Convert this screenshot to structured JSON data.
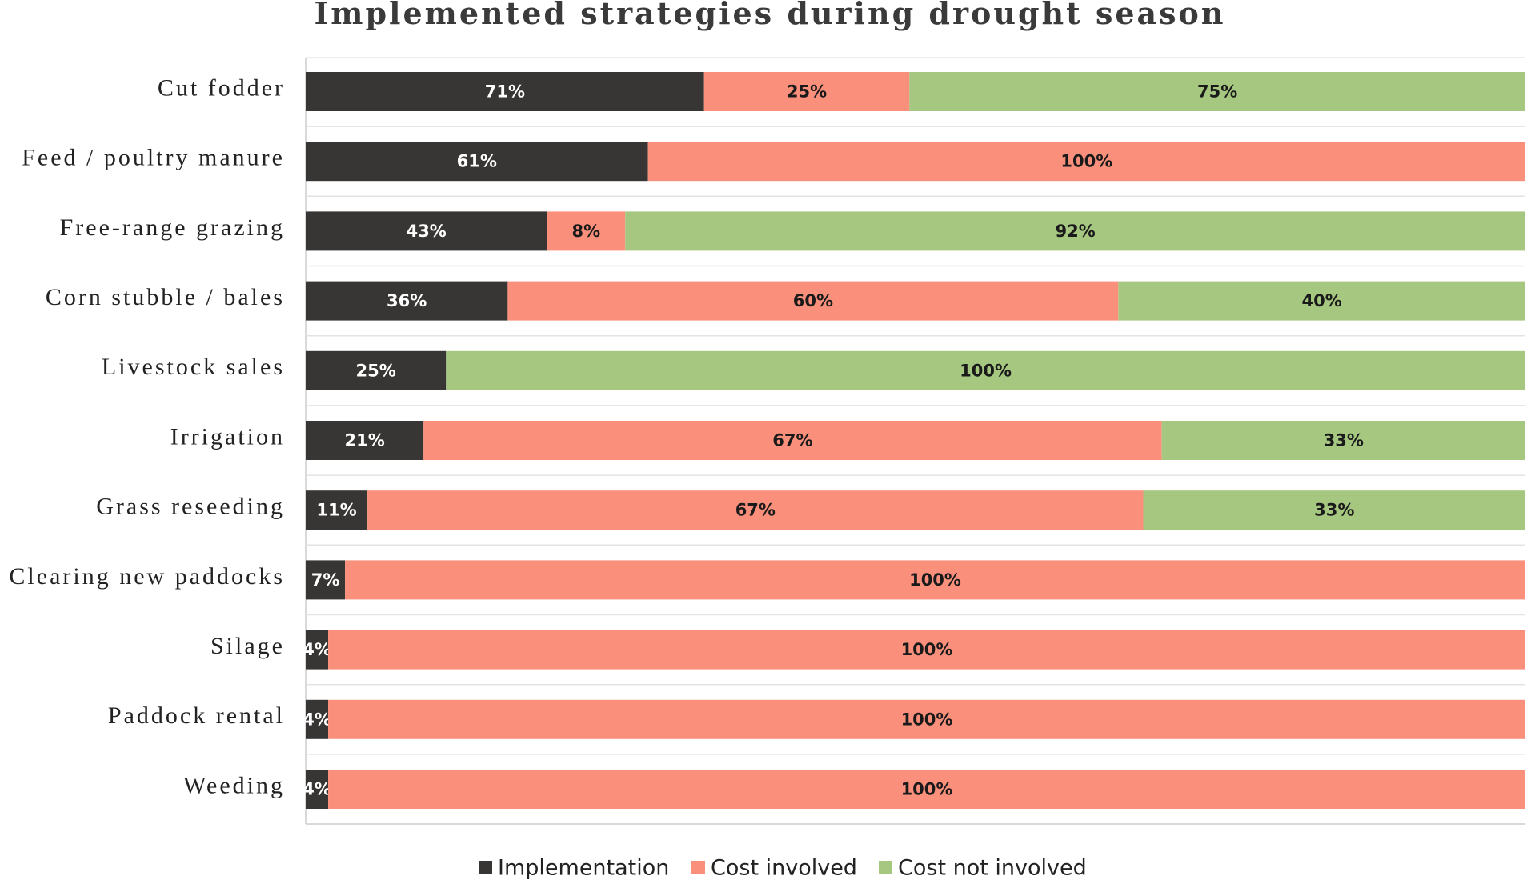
{
  "chart_data": {
    "type": "bar",
    "orientation": "horizontal",
    "stacked": true,
    "title": "Implemented strategies during drought season",
    "xlabel": "",
    "ylabel": "",
    "categories": [
      "Cut fodder",
      "Feed / poultry manure",
      "Free-range grazing",
      "Corn stubble / bales",
      "Livestock sales",
      "Irrigation",
      "Grass reseeding",
      "Clearing new paddocks",
      "Silage",
      "Paddock rental",
      "Weeding"
    ],
    "series": [
      {
        "name": "Implementation",
        "color": "#383634",
        "text_color": "#ffffff",
        "values": [
          71,
          61,
          43,
          36,
          25,
          21,
          11,
          7,
          4,
          4,
          4
        ],
        "labels": [
          "71%",
          "61%",
          "43%",
          "36%",
          "25%",
          "21%",
          "11%",
          "7%",
          "4%",
          "4%",
          "4%"
        ]
      },
      {
        "name": "Cost involved",
        "color": "#fa907c",
        "text_color": "#1a1a1a",
        "values": [
          25,
          100,
          8,
          60,
          0,
          67,
          67,
          100,
          100,
          100,
          100
        ],
        "labels": [
          "25%",
          "100%",
          "8%",
          "60%",
          "",
          "67%",
          "67%",
          "100%",
          "100%",
          "100%",
          "100%"
        ]
      },
      {
        "name": "Cost not involved",
        "color": "#a6c780",
        "text_color": "#1a1a1a",
        "values": [
          75,
          0,
          92,
          40,
          100,
          33,
          33,
          0,
          0,
          0,
          0
        ],
        "labels": [
          "75%",
          "",
          "92%",
          "40%",
          "100%",
          "33%",
          "33%",
          "",
          "",
          "",
          ""
        ]
      }
    ],
    "legend_position": "bottom-center",
    "grid": true
  }
}
